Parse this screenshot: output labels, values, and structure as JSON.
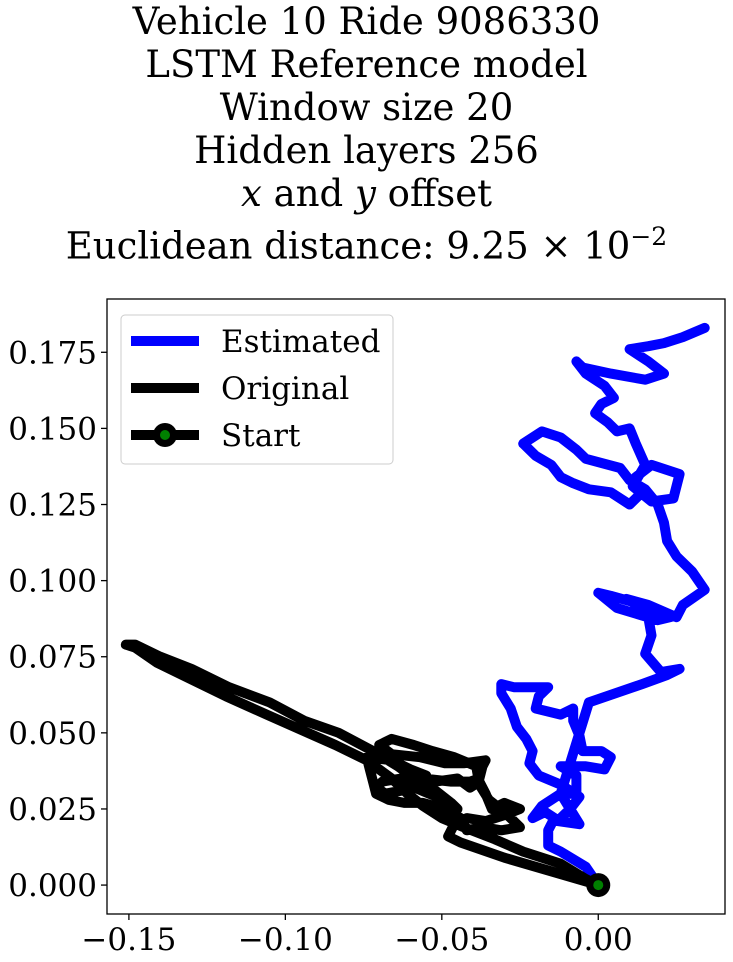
{
  "title_lines": [
    "Vehicle 10 Ride 9086330",
    "LSTM Reference model",
    "Window size 20",
    "Hidden layers 256",
    "x and y offset",
    "Euclidean distance: 9.25 × 10^−2"
  ],
  "title_parts": {
    "line5": {
      "x": "x",
      "and": " and ",
      "y": "y",
      "rest": " offset"
    },
    "line6": {
      "prefix": "Euclidean distance: 9.25 × 10",
      "exponent": "−2"
    }
  },
  "chart_data": {
    "type": "line",
    "title": "Vehicle 10 Ride 9086330 LSTM Reference model Window size 20 Hidden layers 256 x and y offset Euclidean distance: 9.25×10^−2",
    "xlabel": "",
    "ylabel": "",
    "xlim": [
      -0.157,
      0.0405
    ],
    "ylim": [
      -0.0095,
      0.1925
    ],
    "x_ticks": [
      -0.15,
      -0.1,
      -0.05,
      0.0
    ],
    "x_tick_labels": [
      "−0.15",
      "−0.10",
      "−0.05",
      "0.00"
    ],
    "y_ticks": [
      0.0,
      0.025,
      0.05,
      0.075,
      0.1,
      0.125,
      0.15,
      0.175
    ],
    "y_tick_labels": [
      "0.000",
      "0.025",
      "0.050",
      "0.075",
      "0.100",
      "0.125",
      "0.150",
      "0.175"
    ],
    "grid": false,
    "legend_position": "upper-left",
    "series": [
      {
        "name": "Estimated",
        "color": "#0000ff",
        "points": [
          [
            0.0,
            0.0
          ],
          [
            -0.004,
            0.006
          ],
          [
            -0.012,
            0.011
          ],
          [
            -0.016,
            0.013
          ],
          [
            -0.016,
            0.018
          ],
          [
            -0.014,
            0.022
          ],
          [
            -0.017,
            0.024
          ],
          [
            -0.021,
            0.022
          ],
          [
            -0.018,
            0.026
          ],
          [
            -0.012,
            0.03
          ],
          [
            -0.007,
            0.03
          ],
          [
            -0.007,
            0.036
          ],
          [
            -0.012,
            0.039
          ],
          [
            -0.004,
            0.039
          ],
          [
            0.002,
            0.038
          ],
          [
            0.004,
            0.042
          ],
          [
            0.001,
            0.044
          ],
          [
            -0.005,
            0.044
          ],
          [
            -0.006,
            0.049
          ],
          [
            -0.008,
            0.054
          ],
          [
            -0.008,
            0.058
          ],
          [
            -0.012,
            0.056
          ],
          [
            -0.02,
            0.058
          ],
          [
            -0.019,
            0.062
          ],
          [
            -0.016,
            0.065
          ],
          [
            -0.027,
            0.065
          ],
          [
            -0.031,
            0.066
          ],
          [
            -0.031,
            0.063
          ],
          [
            -0.028,
            0.058
          ],
          [
            -0.026,
            0.052
          ],
          [
            -0.023,
            0.048
          ],
          [
            -0.021,
            0.044
          ],
          [
            -0.022,
            0.04
          ],
          [
            -0.019,
            0.036
          ],
          [
            -0.012,
            0.033
          ],
          [
            -0.006,
            0.029
          ],
          [
            -0.009,
            0.025
          ],
          [
            -0.013,
            0.021
          ],
          [
            -0.006,
            0.02
          ],
          [
            -0.012,
            0.03
          ],
          [
            -0.003,
            0.06
          ],
          [
            0.014,
            0.066
          ],
          [
            0.022,
            0.069
          ],
          [
            0.026,
            0.071
          ],
          [
            0.02,
            0.07
          ],
          [
            0.015,
            0.076
          ],
          [
            0.017,
            0.082
          ],
          [
            0.016,
            0.088
          ],
          [
            0.011,
            0.093
          ],
          [
            0.004,
            0.095
          ],
          [
            0.0,
            0.096
          ],
          [
            0.006,
            0.091
          ],
          [
            0.019,
            0.087
          ],
          [
            0.023,
            0.088
          ],
          [
            0.016,
            0.09
          ],
          [
            0.009,
            0.094
          ],
          [
            0.016,
            0.092
          ],
          [
            0.025,
            0.088
          ],
          [
            0.027,
            0.092
          ],
          [
            0.034,
            0.097
          ],
          [
            0.03,
            0.103
          ],
          [
            0.025,
            0.108
          ],
          [
            0.022,
            0.113
          ],
          [
            0.021,
            0.119
          ],
          [
            0.019,
            0.125
          ],
          [
            0.015,
            0.13
          ],
          [
            0.01,
            0.133
          ],
          [
            0.007,
            0.137
          ],
          [
            -0.004,
            0.14
          ],
          [
            -0.007,
            0.143
          ],
          [
            -0.012,
            0.147
          ],
          [
            -0.018,
            0.149
          ],
          [
            -0.024,
            0.145
          ],
          [
            -0.02,
            0.141
          ],
          [
            -0.015,
            0.138
          ],
          [
            -0.012,
            0.134
          ],
          [
            -0.008,
            0.132
          ],
          [
            -0.003,
            0.13
          ],
          [
            0.004,
            0.129
          ],
          [
            0.01,
            0.125
          ],
          [
            0.013,
            0.128
          ],
          [
            0.012,
            0.134
          ],
          [
            0.017,
            0.138
          ],
          [
            0.026,
            0.135
          ],
          [
            0.024,
            0.127
          ],
          [
            0.017,
            0.126
          ],
          [
            0.011,
            0.131
          ],
          [
            0.015,
            0.138
          ],
          [
            0.012,
            0.145
          ],
          [
            0.01,
            0.15
          ],
          [
            0.006,
            0.149
          ],
          [
            0.003,
            0.152
          ],
          [
            -0.001,
            0.155
          ],
          [
            0.001,
            0.158
          ],
          [
            0.005,
            0.16
          ],
          [
            0.002,
            0.164
          ],
          [
            -0.004,
            0.168
          ],
          [
            -0.007,
            0.172
          ],
          [
            -0.005,
            0.17
          ],
          [
            0.004,
            0.168
          ],
          [
            0.015,
            0.166
          ],
          [
            0.021,
            0.168
          ],
          [
            0.016,
            0.172
          ],
          [
            0.01,
            0.176
          ],
          [
            0.016,
            0.177
          ],
          [
            0.021,
            0.178
          ],
          [
            0.027,
            0.18
          ],
          [
            0.034,
            0.183
          ]
        ]
      },
      {
        "name": "Original",
        "color": "#000000",
        "points": [
          [
            0.0,
            0.0
          ],
          [
            -0.03,
            0.009
          ],
          [
            -0.044,
            0.014
          ],
          [
            -0.048,
            0.016
          ],
          [
            -0.046,
            0.02
          ],
          [
            -0.042,
            0.022
          ],
          [
            -0.036,
            0.021
          ],
          [
            -0.03,
            0.023
          ],
          [
            -0.025,
            0.025
          ],
          [
            -0.03,
            0.027
          ],
          [
            -0.034,
            0.025
          ],
          [
            -0.036,
            0.03
          ],
          [
            -0.038,
            0.034
          ],
          [
            -0.041,
            0.032
          ],
          [
            -0.045,
            0.035
          ],
          [
            -0.052,
            0.034
          ],
          [
            -0.058,
            0.032
          ],
          [
            -0.063,
            0.031
          ],
          [
            -0.068,
            0.03
          ],
          [
            -0.071,
            0.032
          ],
          [
            -0.069,
            0.034
          ],
          [
            -0.063,
            0.035
          ],
          [
            -0.056,
            0.035
          ],
          [
            -0.047,
            0.034
          ],
          [
            -0.041,
            0.034
          ],
          [
            -0.038,
            0.035
          ],
          [
            -0.037,
            0.039
          ],
          [
            -0.036,
            0.041
          ],
          [
            -0.043,
            0.04
          ],
          [
            -0.049,
            0.04
          ],
          [
            -0.057,
            0.042
          ],
          [
            -0.066,
            0.043
          ],
          [
            -0.07,
            0.046
          ],
          [
            -0.066,
            0.048
          ],
          [
            -0.059,
            0.046
          ],
          [
            -0.053,
            0.044
          ],
          [
            -0.046,
            0.042
          ],
          [
            -0.039,
            0.039
          ],
          [
            -0.038,
            0.033
          ],
          [
            -0.035,
            0.028
          ],
          [
            -0.03,
            0.024
          ],
          [
            -0.025,
            0.019
          ],
          [
            -0.031,
            0.018
          ],
          [
            -0.037,
            0.019
          ],
          [
            -0.042,
            0.018
          ],
          [
            -0.044,
            0.022
          ],
          [
            -0.049,
            0.025
          ],
          [
            -0.056,
            0.027
          ],
          [
            -0.062,
            0.027
          ],
          [
            -0.067,
            0.028
          ],
          [
            -0.071,
            0.03
          ],
          [
            -0.072,
            0.034
          ],
          [
            -0.073,
            0.038
          ],
          [
            -0.074,
            0.042
          ],
          [
            -0.066,
            0.041
          ],
          [
            -0.06,
            0.038
          ],
          [
            -0.055,
            0.036
          ],
          [
            -0.061,
            0.033
          ],
          [
            -0.054,
            0.03
          ],
          [
            -0.049,
            0.028
          ],
          [
            -0.045,
            0.025
          ],
          [
            -0.047,
            0.027
          ],
          [
            -0.052,
            0.031
          ],
          [
            -0.056,
            0.033
          ],
          [
            -0.06,
            0.036
          ],
          [
            -0.064,
            0.039
          ],
          [
            -0.072,
            0.044
          ],
          [
            -0.083,
            0.05
          ],
          [
            -0.094,
            0.054
          ],
          [
            -0.105,
            0.06
          ],
          [
            -0.118,
            0.065
          ],
          [
            -0.13,
            0.071
          ],
          [
            -0.14,
            0.075
          ],
          [
            -0.148,
            0.079
          ],
          [
            -0.151,
            0.079
          ],
          [
            -0.148,
            0.078
          ],
          [
            -0.141,
            0.073
          ],
          [
            -0.131,
            0.068
          ],
          [
            -0.119,
            0.062
          ],
          [
            -0.106,
            0.056
          ],
          [
            -0.095,
            0.051
          ],
          [
            -0.084,
            0.046
          ],
          [
            -0.074,
            0.041
          ],
          [
            -0.066,
            0.035
          ],
          [
            -0.061,
            0.03
          ],
          [
            -0.056,
            0.026
          ],
          [
            -0.05,
            0.022
          ],
          [
            -0.043,
            0.019
          ],
          [
            -0.033,
            0.015
          ],
          [
            -0.024,
            0.011
          ],
          [
            -0.012,
            0.007
          ],
          [
            -0.004,
            0.002
          ],
          [
            0.0,
            0.0
          ]
        ]
      },
      {
        "name": "Start",
        "color": "#000000",
        "marker_color": "#008000",
        "points": [
          [
            0.0,
            0.0
          ]
        ]
      }
    ]
  }
}
